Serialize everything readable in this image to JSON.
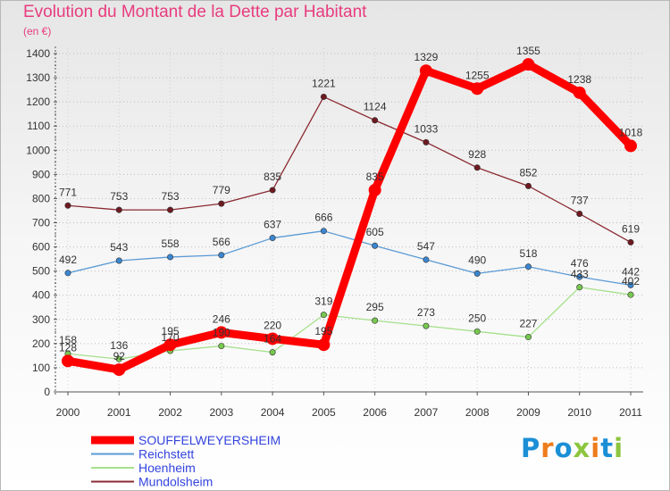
{
  "header": {
    "title": "Evolution du Montant de la Dette par Habitant",
    "subtitle": "(en €)"
  },
  "brand": {
    "logo_letters": [
      "P",
      "r",
      "o",
      "x",
      "i",
      "t",
      "i"
    ],
    "logo_colors": [
      "#1b8fd6",
      "#ee7d1d",
      "#1b8fd6",
      "#8cc63f",
      "#ee7d1d",
      "#1b8fd6",
      "#8cc63f"
    ]
  },
  "colors": {
    "title": "#e83c7e",
    "grid": "#bdbdbd",
    "axis": "#555555"
  },
  "chart_data": {
    "type": "line",
    "title": "Evolution du Montant de la Dette par Habitant",
    "subtitle": "(en €)",
    "xlabel": "",
    "ylabel": "",
    "x": [
      "2000",
      "2001",
      "2002",
      "2003",
      "2004",
      "2005",
      "2006",
      "2007",
      "2008",
      "2009",
      "2010",
      "2011"
    ],
    "ylim": [
      0,
      1400
    ],
    "yticks": [
      0,
      100,
      200,
      300,
      400,
      500,
      600,
      700,
      800,
      900,
      1000,
      1100,
      1200,
      1300,
      1400
    ],
    "grid": true,
    "legend_position": "bottom-left",
    "series": [
      {
        "name": "Mundolsheim",
        "color": "#8b2a32",
        "marker": "#6e1a20",
        "values": [
          771,
          753,
          753,
          779,
          835,
          1221,
          1124,
          1033,
          928,
          852,
          737,
          619
        ],
        "labels": [
          "771",
          "753",
          "753",
          "779",
          "835",
          "1221",
          "1124",
          "1033",
          "928",
          "852",
          "737",
          "619"
        ]
      },
      {
        "name": "Reichstett",
        "color": "#5b9bd5",
        "marker": "#3b86d1",
        "values": [
          492,
          543,
          558,
          566,
          637,
          666,
          605,
          547,
          490,
          518,
          476,
          442
        ],
        "labels": [
          "492",
          "543",
          "558",
          "566",
          "637",
          "666",
          "605",
          "547",
          "490",
          "518",
          "476",
          "442"
        ]
      },
      {
        "name": "Hoenheim",
        "color": "#a6e08c",
        "marker": "#78c850",
        "values": [
          158,
          136,
          170,
          190,
          164,
          319,
          295,
          273,
          250,
          227,
          433,
          402
        ],
        "labels": [
          "158",
          "136",
          "170",
          "190",
          "164",
          "319",
          "295",
          "273",
          "250",
          "227",
          "433",
          "402"
        ]
      },
      {
        "name": "SOUFFELWEYERSHEIM",
        "color": "#ff0000",
        "marker": "#ff0000",
        "thick": true,
        "values": [
          128,
          92,
          195,
          246,
          220,
          195,
          835,
          1329,
          1255,
          1355,
          1238,
          1018
        ],
        "labels": [
          "128",
          "92",
          "195",
          "246",
          "220",
          "195",
          "835",
          "1329",
          "1255",
          "1355",
          "1238",
          "1018"
        ]
      }
    ],
    "legend": [
      {
        "name": "SOUFFELWEYERSHEIM",
        "color": "#ff0000",
        "text_color": "#3344dd",
        "thick": true
      },
      {
        "name": "Reichstett",
        "color": "#5b9bd5",
        "text_color": "#3344dd",
        "thick": false
      },
      {
        "name": "Hoenheim",
        "color": "#a6e08c",
        "text_color": "#3344dd",
        "thick": false
      },
      {
        "name": "Mundolsheim",
        "color": "#8b2a32",
        "text_color": "#3344dd",
        "thick": false
      }
    ]
  }
}
